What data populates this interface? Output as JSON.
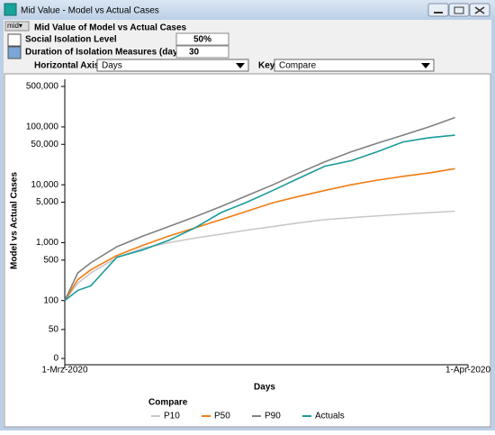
{
  "window": {
    "title": "Mid Value - Model vs Actual Cases",
    "view_menu": "mid▾",
    "heading": "Mid Value of Model vs Actual Cases",
    "inputs": [
      {
        "label": "Social Isolation Level",
        "value": "50%"
      },
      {
        "label": "Duration of Isolation Measures  (days)",
        "value": "30"
      }
    ],
    "horizontal_axis_label": "Horizontal Axis:",
    "horizontal_axis_value": "Days",
    "key_label": "Key:",
    "key_value": "Compare"
  },
  "chart_data": {
    "type": "line",
    "x_label": "Days",
    "y_label": "Model vs Actual Cases",
    "legend_title": "Compare",
    "legend": "bottom",
    "yscale": "symlog",
    "linthresh": 100,
    "x": [
      0,
      1,
      2,
      4,
      6,
      8,
      10,
      12,
      14,
      16,
      18,
      20,
      22,
      24,
      26,
      28,
      30
    ],
    "xlim": [
      0,
      31
    ],
    "xticks": [
      {
        "value": 0,
        "label": "1-Mrz-2020"
      },
      {
        "value": 31,
        "label": "1-Apr-2020"
      }
    ],
    "ylim": [
      0,
      500000
    ],
    "yticks": [
      0,
      50,
      100,
      500,
      {
        "value": 1000,
        "label": "1,000"
      },
      {
        "value": 5000,
        "label": "5,000"
      },
      {
        "value": 10000,
        "label": "10,000"
      },
      {
        "value": 50000,
        "label": "50,000"
      },
      {
        "value": 100000,
        "label": "100,000"
      },
      {
        "value": 500000,
        "label": "500,000"
      }
    ],
    "series": [
      {
        "name": "P10",
        "color": "#c8c8c8",
        "values": [
          100,
          200,
          300,
          550,
          800,
          1000,
          1200,
          1400,
          1650,
          1900,
          2200,
          2500,
          2700,
          2900,
          3100,
          3300,
          3500
        ]
      },
      {
        "name": "P50",
        "color": "#f07c14",
        "values": [
          100,
          230,
          340,
          600,
          900,
          1300,
          1800,
          2500,
          3500,
          4900,
          6300,
          8000,
          10000,
          12000,
          14000,
          16000,
          19000
        ]
      },
      {
        "name": "P90",
        "color": "#808080",
        "values": [
          100,
          300,
          450,
          850,
          1300,
          1900,
          2800,
          4200,
          6500,
          10000,
          16000,
          25000,
          37000,
          52000,
          72000,
          100000,
          145000
        ]
      },
      {
        "name": "Actuals",
        "color": "#1a9a9a",
        "values": [
          100,
          150,
          180,
          560,
          750,
          1100,
          1800,
          3300,
          5000,
          8000,
          13000,
          21000,
          26000,
          37000,
          55000,
          65000,
          72000
        ]
      }
    ]
  }
}
